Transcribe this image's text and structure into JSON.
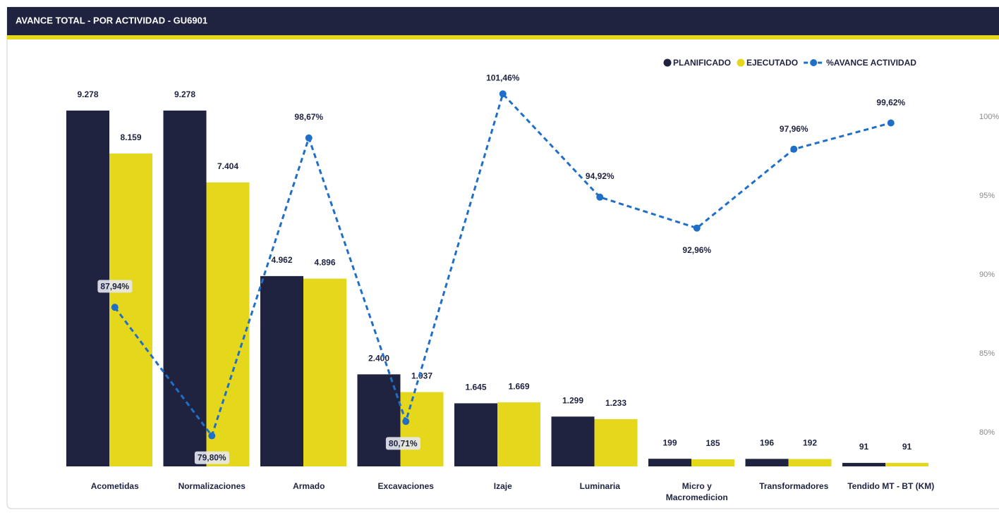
{
  "chart_data": {
    "type": "bar",
    "title": "AVANCE TOTAL - POR ACTIVIDAD - GU6901",
    "categories": [
      "Acometidas",
      "Normalizaciones",
      "Armado",
      "Excavaciones",
      "Izaje",
      "Luminaria",
      "Micro y Macromedicion",
      "Transformadores",
      "Tendido MT - BT (KM)"
    ],
    "series": [
      {
        "name": "PLANIFICADO",
        "color": "#1f2340",
        "type": "bar",
        "values": [
          9278,
          9278,
          4962,
          2400,
          1645,
          1299,
          199,
          196,
          91
        ],
        "value_labels": [
          "9.278",
          "9.278",
          "4.962",
          "2.400",
          "1.645",
          "1.299",
          "199",
          "196",
          "91"
        ]
      },
      {
        "name": "EJECUTADO",
        "color": "#e5d71b",
        "type": "bar",
        "values": [
          8159,
          7404,
          4896,
          1937,
          1669,
          1233,
          185,
          192,
          91
        ],
        "value_labels": [
          "8.159",
          "7.404",
          "4.896",
          "1.937",
          "1.669",
          "1.233",
          "185",
          "192",
          "91"
        ]
      },
      {
        "name": "%AVANCE ACTIVIDAD",
        "color": "#1f6fc9",
        "type": "line",
        "axis": "y2",
        "values": [
          87.94,
          79.8,
          98.67,
          80.71,
          101.46,
          94.92,
          92.96,
          97.96,
          99.62
        ],
        "value_labels": [
          "87,94%",
          "79,80%",
          "98,67%",
          "80,71%",
          "101,46%",
          "94,92%",
          "92,96%",
          "97,96%",
          "99,62%"
        ]
      }
    ],
    "ylim": [
      0,
      10140
    ],
    "y2lim": [
      77.86,
      102.5
    ],
    "y2ticks": [
      {
        "value": 80,
        "label": "80%"
      },
      {
        "value": 85,
        "label": "85%"
      },
      {
        "value": 90,
        "label": "90%"
      },
      {
        "value": 95,
        "label": "95%"
      },
      {
        "value": 100,
        "label": "100%"
      }
    ],
    "legend": "top-right"
  }
}
